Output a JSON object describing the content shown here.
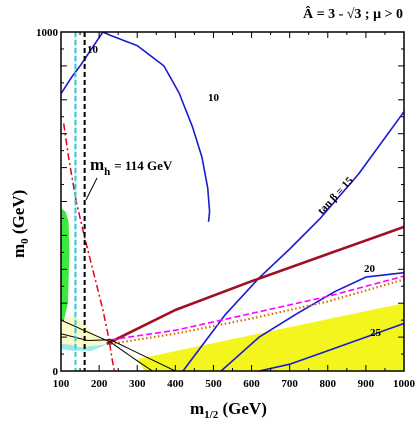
{
  "chart_data": {
    "type": "line",
    "title": "Â = 3 - √3 ; μ > 0",
    "xlabel": "m_{1/2} (GeV)",
    "ylabel": "m_0 (GeV)",
    "xlim": [
      100,
      1000
    ],
    "ylim": [
      0,
      1000
    ],
    "x_ticks": [
      "100",
      "200",
      "300",
      "400",
      "500",
      "600",
      "700",
      "800",
      "900",
      "1000"
    ],
    "y_ticks": [
      "0",
      "1000"
    ],
    "grid": false,
    "colors": {
      "contour": "#1a1ad0",
      "higgs": "#e0001a",
      "limit_line": "#000000",
      "dark_red": "#a01020",
      "magenta": "#ff00ff",
      "orange_dotted": "#d07000",
      "yellow_region": "#f5f51e",
      "green_region": "#3ce83c",
      "cyan_region": "#9aeaea",
      "pale_region": "#fbfbc8"
    },
    "series": [
      {
        "name": "tan β = 10",
        "points": [
          [
            100,
            818
          ],
          [
            130,
            870
          ],
          [
            150,
            900
          ],
          [
            180,
            950
          ],
          [
            210,
            1000
          ]
        ]
      },
      {
        "name": "tan β = 10 (loop)",
        "points": [
          [
            210,
            1000
          ],
          [
            230,
            990
          ],
          [
            300,
            960
          ],
          [
            370,
            900
          ],
          [
            410,
            820
          ],
          [
            445,
            720
          ],
          [
            470,
            630
          ],
          [
            485,
            540
          ],
          [
            490,
            470
          ],
          [
            487,
            440
          ]
        ]
      },
      {
        "name": "tan β = 15",
        "points": [
          [
            420,
            0
          ],
          [
            530,
            165
          ],
          [
            620,
            275
          ],
          [
            700,
            360
          ],
          [
            780,
            450
          ],
          [
            880,
            580
          ],
          [
            1000,
            765
          ]
        ]
      },
      {
        "name": "tan β = 20",
        "points": [
          [
            520,
            0
          ],
          [
            620,
            100
          ],
          [
            720,
            170
          ],
          [
            820,
            235
          ],
          [
            900,
            277
          ],
          [
            1000,
            290
          ]
        ]
      },
      {
        "name": "tan β = 25",
        "points": [
          [
            620,
            0
          ],
          [
            700,
            20
          ],
          [
            800,
            60
          ],
          [
            900,
            100
          ],
          [
            1000,
            140
          ]
        ]
      },
      {
        "name": "m_h = 114 GeV",
        "points": [
          [
            107,
            730
          ],
          [
            120,
            630
          ],
          [
            140,
            500
          ],
          [
            165,
            380
          ],
          [
            190,
            270
          ],
          [
            210,
            180
          ],
          [
            225,
            100
          ],
          [
            235,
            30
          ],
          [
            240,
            0
          ]
        ]
      },
      {
        "name": "dark red line",
        "points": [
          [
            220,
            80
          ],
          [
            400,
            180
          ],
          [
            600,
            265
          ],
          [
            800,
            345
          ],
          [
            1000,
            425
          ]
        ]
      },
      {
        "name": "magenta dashed",
        "points": [
          [
            230,
            92
          ],
          [
            400,
            120
          ],
          [
            600,
            170
          ],
          [
            800,
            220
          ],
          [
            1000,
            280
          ]
        ]
      },
      {
        "name": "orange dotted",
        "points": [
          [
            230,
            80
          ],
          [
            400,
            110
          ],
          [
            600,
            155
          ],
          [
            800,
            205
          ],
          [
            1000,
            270
          ]
        ]
      }
    ],
    "regions": [
      {
        "name": "yellow",
        "points": [
          [
            300,
            35
          ],
          [
            1000,
            200
          ],
          [
            1000,
            0
          ],
          [
            320,
            0
          ]
        ]
      },
      {
        "name": "green",
        "points": [
          [
            100,
            480
          ],
          [
            112,
            470
          ],
          [
            120,
            440
          ],
          [
            122,
            350
          ],
          [
            118,
            200
          ],
          [
            108,
            150
          ],
          [
            100,
            150
          ]
        ]
      }
    ],
    "vertical_lines": [
      {
        "name": "black dashed",
        "x": 162
      },
      {
        "name": "cyan dashed",
        "x": 138
      }
    ],
    "annotations": {
      "mh_label": "m",
      "mh_sub": "h",
      "mh_value": "= 114 GeV",
      "tanb_label": "tan β = 15",
      "contour_10a": "10",
      "contour_10b": "10",
      "contour_20": "20",
      "contour_25": "25"
    }
  }
}
